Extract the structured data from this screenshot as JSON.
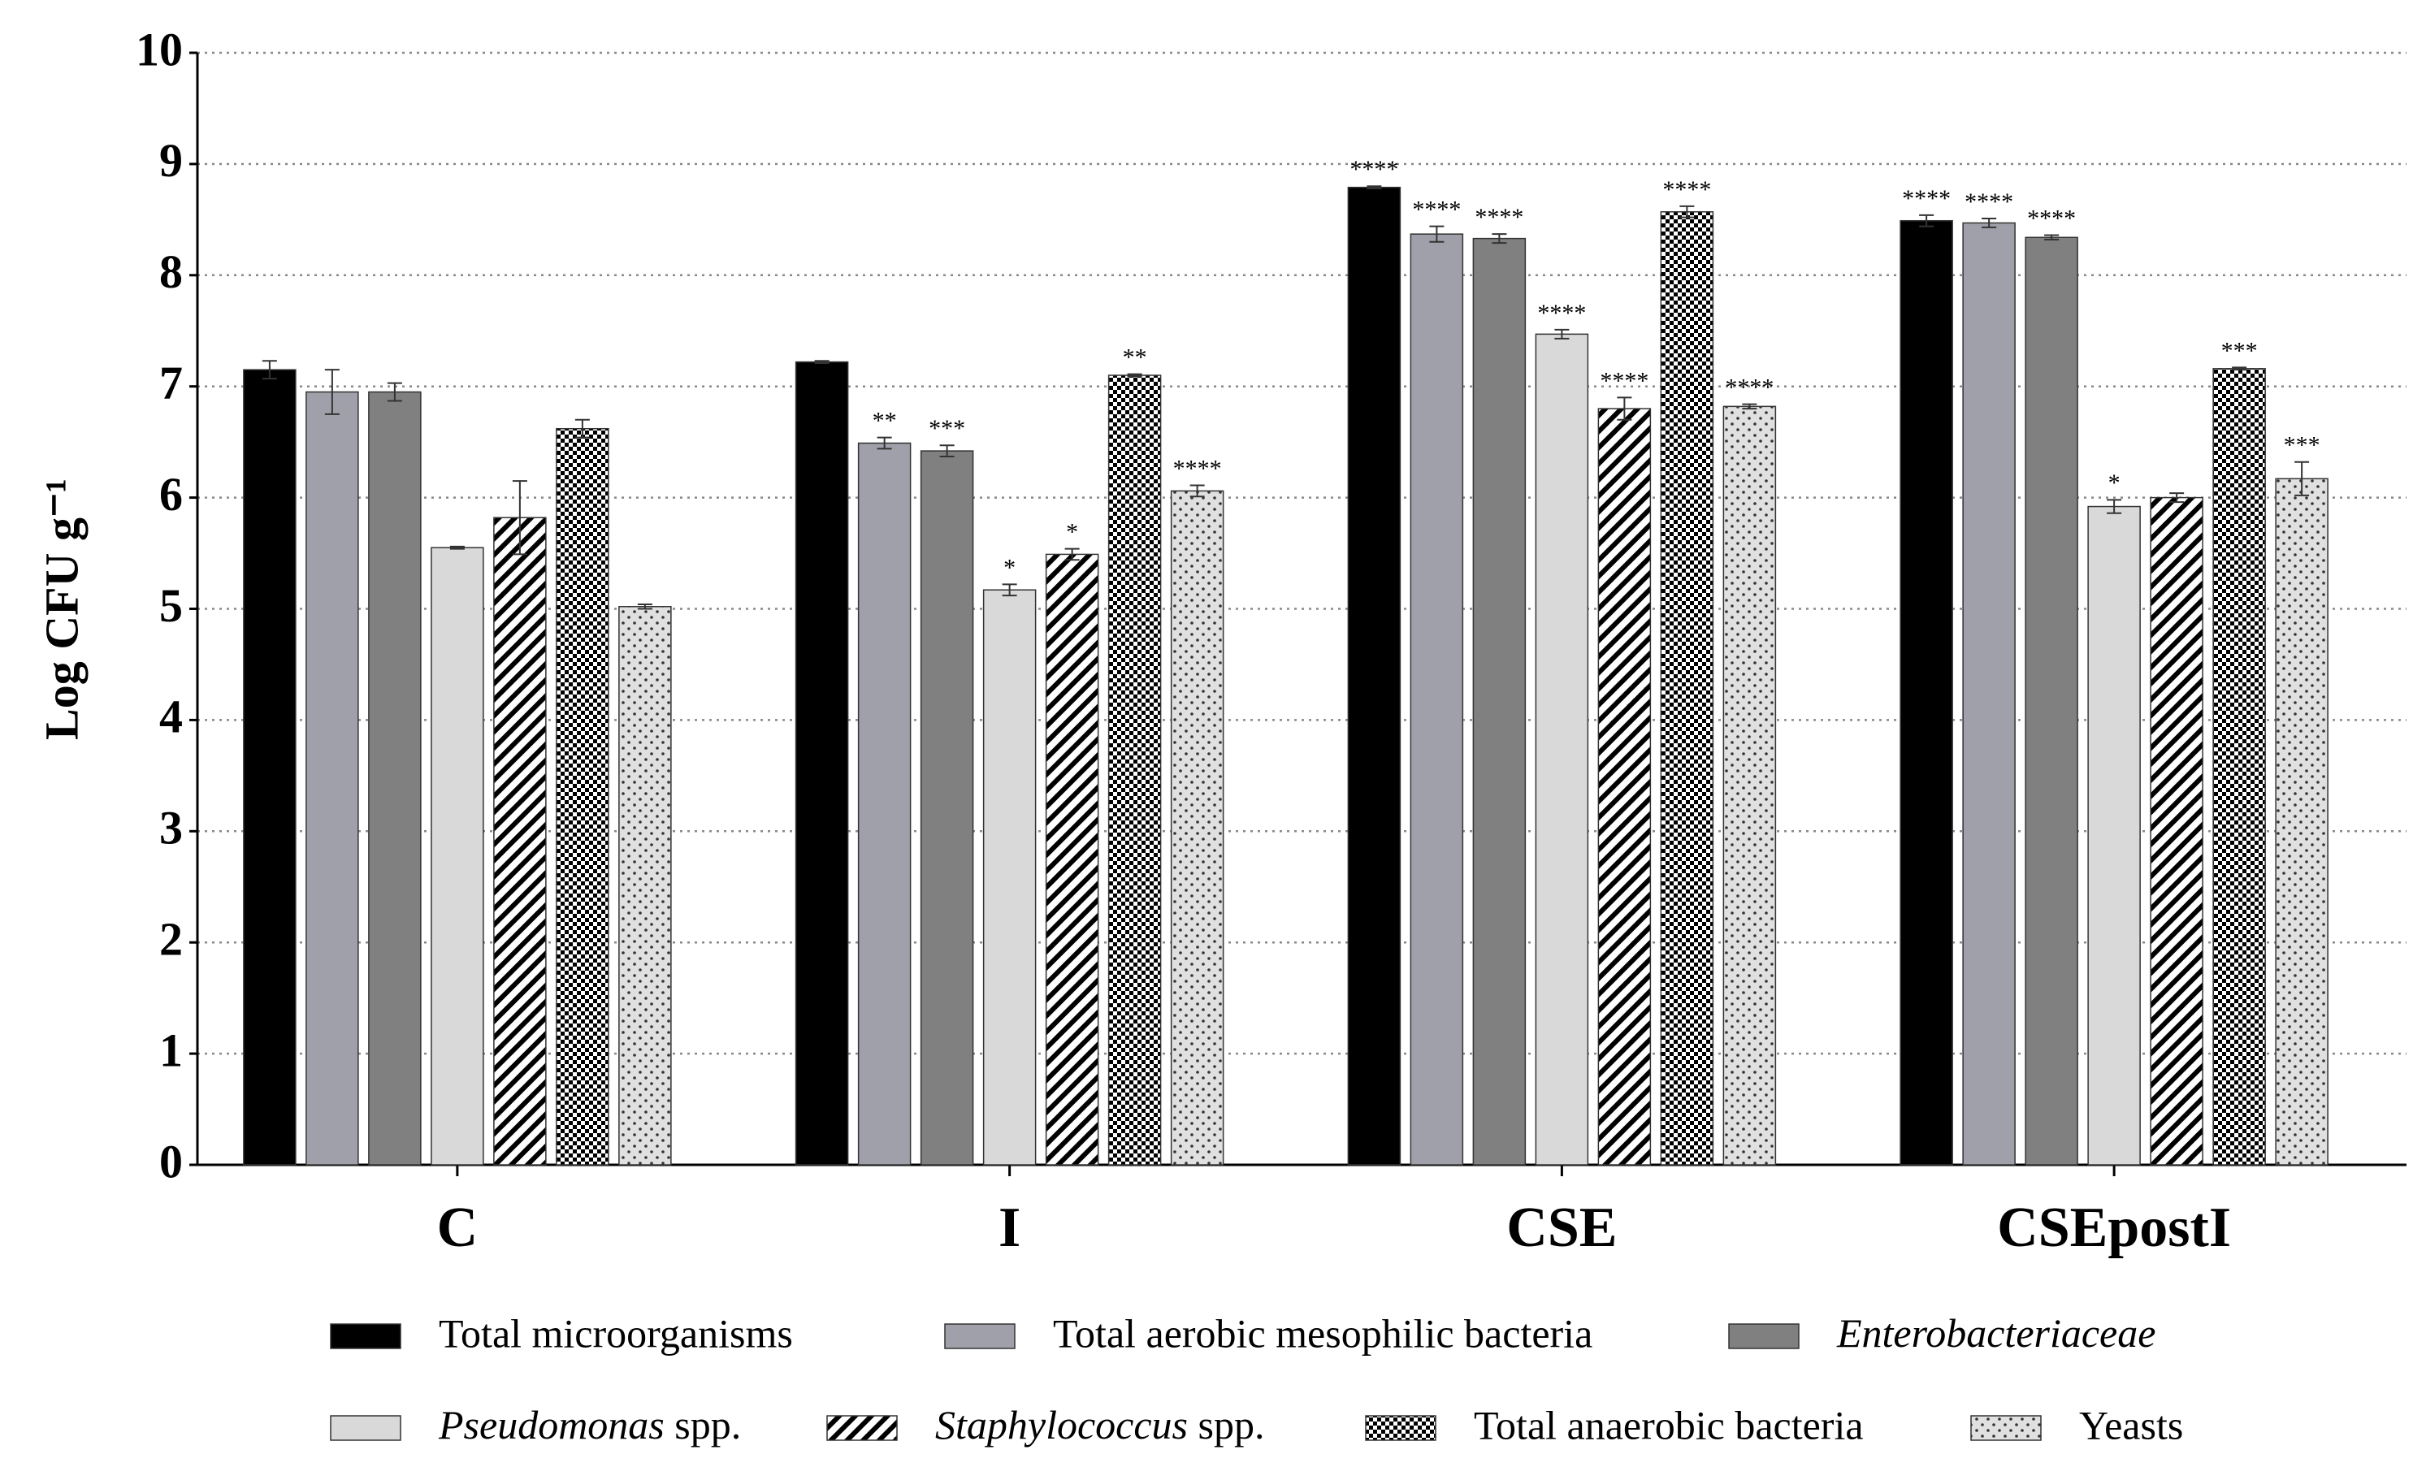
{
  "chart_data": {
    "type": "bar",
    "ylabel": "Log CFU g⁻¹",
    "categories": [
      "C",
      "I",
      "CSE",
      "CSEpostI"
    ],
    "ylim": [
      0,
      10
    ],
    "yticks": [
      0,
      1,
      2,
      3,
      4,
      5,
      6,
      7,
      8,
      9,
      10
    ],
    "grid": true,
    "series": [
      {
        "name": "Total microorganisms",
        "color": "#000000",
        "pattern": "solid",
        "italic": false,
        "values": [
          7.15,
          7.22,
          8.79,
          8.49
        ],
        "errors": [
          0.08,
          0.01,
          0.01,
          0.05
        ],
        "annotations": [
          null,
          null,
          "****",
          "****"
        ]
      },
      {
        "name": "Total aerobic mesophilic bacteria",
        "color": "#a0a0aa",
        "pattern": "solid",
        "italic": false,
        "values": [
          6.95,
          6.49,
          8.37,
          8.47
        ],
        "errors": [
          0.2,
          0.05,
          0.07,
          0.04
        ],
        "annotations": [
          null,
          "**",
          "****",
          "****"
        ]
      },
      {
        "name": "Enterobacteriaceae",
        "color": "#808080",
        "pattern": "solid",
        "italic": true,
        "values": [
          6.95,
          6.42,
          8.33,
          8.34
        ],
        "errors": [
          0.08,
          0.05,
          0.04,
          0.02
        ],
        "annotations": [
          null,
          "***",
          "****",
          "****"
        ]
      },
      {
        "name": "Pseudomonas spp.",
        "color": "#d9d9d9",
        "pattern": "solid",
        "italic": true,
        "values": [
          5.55,
          5.17,
          7.47,
          5.92
        ],
        "errors": [
          0.01,
          0.05,
          0.04,
          0.06
        ],
        "annotations": [
          null,
          "*",
          "****",
          "*"
        ]
      },
      {
        "name": "Staphylococcus spp.",
        "color": "#000000",
        "pattern": "hatch",
        "italic": true,
        "values": [
          5.82,
          5.49,
          6.8,
          6.0
        ],
        "errors": [
          0.33,
          0.05,
          0.1,
          0.04
        ],
        "annotations": [
          null,
          "*",
          "****",
          null
        ]
      },
      {
        "name": "Total anaerobic bacteria",
        "color": "#000000",
        "pattern": "checker",
        "italic": false,
        "values": [
          6.62,
          7.1,
          8.57,
          7.16
        ],
        "errors": [
          0.08,
          0.01,
          0.05,
          0.01
        ],
        "annotations": [
          null,
          "**",
          "****",
          "***"
        ]
      },
      {
        "name": "Yeasts",
        "color": "#e0e0e0",
        "pattern": "dots",
        "italic": false,
        "values": [
          5.02,
          6.06,
          6.82,
          6.17
        ],
        "errors": [
          0.02,
          0.05,
          0.02,
          0.15
        ],
        "annotations": [
          null,
          "****",
          "****",
          "***"
        ]
      }
    ]
  }
}
